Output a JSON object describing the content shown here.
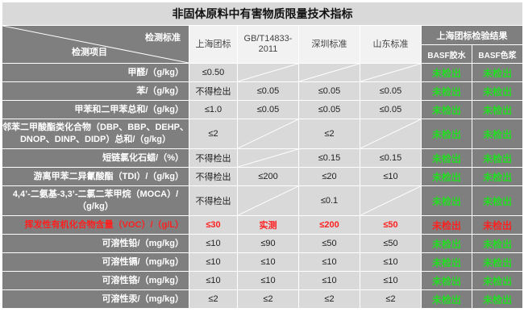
{
  "title": "非固体原料中有害物质限量技术指标",
  "header": {
    "diag_standard": "检测标准",
    "diag_item": "检测项目",
    "standards": [
      "上海团标",
      "GB/T14833-2011",
      "深圳标准",
      "山东标准"
    ],
    "results_group": "上海团标检验结果",
    "results": [
      "BASF胶水",
      "BASF色浆"
    ]
  },
  "rows": [
    {
      "item": "甲醛/（g/kg）",
      "values": [
        "≤0.50",
        "",
        "",
        ""
      ],
      "results": [
        "未检出",
        "未检出"
      ]
    },
    {
      "item": "苯/（g/kg）",
      "values": [
        "不得检出",
        "≤0.05",
        "≤0.05",
        "≤0.05"
      ],
      "results": [
        "未检出",
        "未检出"
      ]
    },
    {
      "item": "甲苯和二甲苯总和/（g/kg）",
      "values": [
        "≤1.0",
        "≤0.05",
        "≤0.05",
        "≤0.05"
      ],
      "results": [
        "未检出",
        "未检出"
      ]
    },
    {
      "item": "邻苯二甲酸酯类化合物（DBP、BBP、DEHP、DNOP、DINP、DIDP）总和/（g/kg）",
      "values": [
        "≤2",
        "",
        "≤2",
        ""
      ],
      "results": [
        "未检出",
        "未检出"
      ]
    },
    {
      "item": "短链氯化石蜡/（%）",
      "values": [
        "不得检出",
        "",
        "≤0.15",
        "≤0.15"
      ],
      "results": [
        "未检出",
        "未检出"
      ]
    },
    {
      "item": "游离甲苯二异氰酸酯（TDI）/（g/kg）",
      "values": [
        "不得检出",
        "≤200",
        "≤20",
        "≤10"
      ],
      "results": [
        "未检出",
        "未检出"
      ]
    },
    {
      "item": "4,4’-二氨基-3,3’-二氯二苯甲烷（MOCA）/（g/kg）",
      "values": [
        "不得检出",
        "",
        "≤0.1",
        ""
      ],
      "results": [
        "未检出",
        "未检出"
      ]
    },
    {
      "item": "挥发性有机化合物含量（VOC）/（g/L）",
      "values": [
        "≤30",
        "实测",
        "≤200",
        "≤50"
      ],
      "results": [
        "未检出",
        "未检出"
      ]
    },
    {
      "item": "可溶性铅/（mg/kg）",
      "values": [
        "≤10",
        "≤90",
        "≤50",
        "≤50"
      ],
      "results": [
        "未检出",
        "未检出"
      ]
    },
    {
      "item": "可溶性镉/（mg/kg）",
      "values": [
        "≤10",
        "≤10",
        "≤10",
        "≤10"
      ],
      "results": [
        "未检出",
        "未检出"
      ]
    },
    {
      "item": "可溶性铬/（mg/kg）",
      "values": [
        "≤10",
        "≤10",
        "≤10",
        "≤10"
      ],
      "results": [
        "未检出",
        "未检出"
      ]
    },
    {
      "item": "可溶性汞/（mg/kg）",
      "values": [
        "≤2",
        "≤2",
        "≤2",
        "≤2"
      ],
      "results": [
        "未检出",
        "未检出"
      ]
    }
  ],
  "colors": {
    "pass": "#22dd22",
    "highlight": "#ff2020",
    "label_bg": "#7f7f7f",
    "cell_bg": "#d9d9d9"
  }
}
